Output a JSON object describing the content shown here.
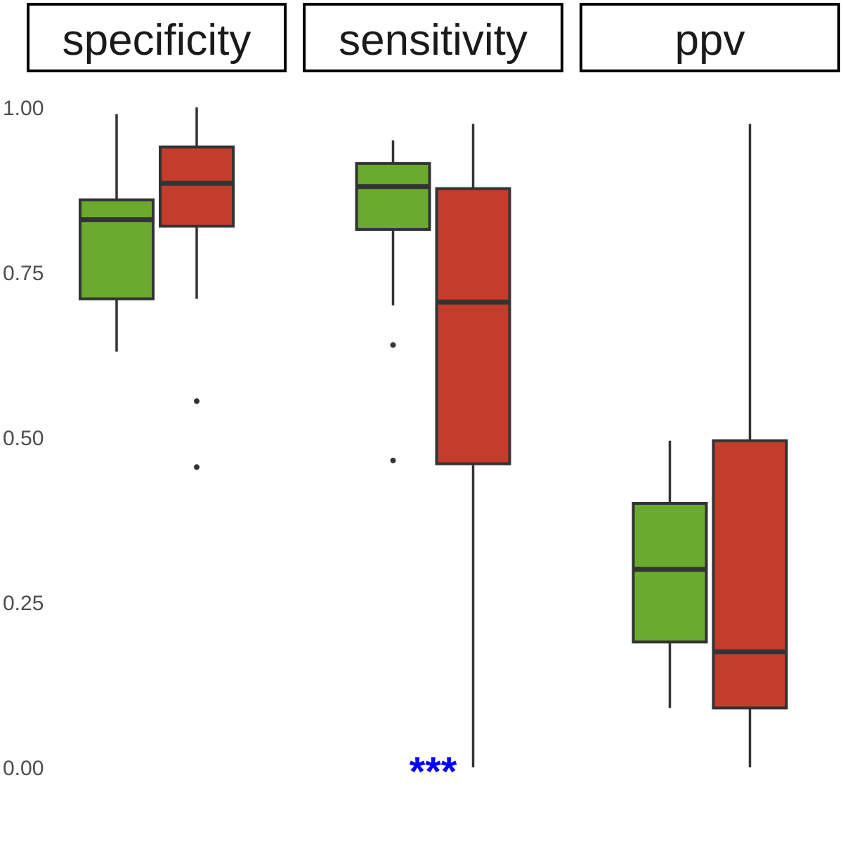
{
  "chart_data": {
    "type": "boxplot",
    "facets": [
      "specificity",
      "sensitivity",
      "ppv"
    ],
    "ylim": [
      0,
      1
    ],
    "y_ticks": [
      "0.00",
      "0.25",
      "0.50",
      "0.75",
      "1.00"
    ],
    "y_tick_values": [
      0,
      0.25,
      0.5,
      0.75,
      1.0
    ],
    "grid": false,
    "legend": "none",
    "colors": {
      "green": "#6aaa2e",
      "red": "#c33d2a",
      "outline": "#333333",
      "annotation": "#0000ff"
    },
    "boxes": [
      {
        "facet": "specificity",
        "group": "green",
        "lower_whisker": 0.63,
        "q1": 0.71,
        "median": 0.83,
        "q3": 0.86,
        "upper_whisker": 0.99,
        "outliers": []
      },
      {
        "facet": "specificity",
        "group": "red",
        "lower_whisker": 0.71,
        "q1": 0.82,
        "median": 0.885,
        "q3": 0.94,
        "upper_whisker": 1.0,
        "outliers": [
          0.555,
          0.455
        ]
      },
      {
        "facet": "sensitivity",
        "group": "green",
        "lower_whisker": 0.7,
        "q1": 0.815,
        "median": 0.88,
        "q3": 0.915,
        "upper_whisker": 0.95,
        "outliers": [
          0.64,
          0.465
        ]
      },
      {
        "facet": "sensitivity",
        "group": "red",
        "lower_whisker": 0.0,
        "q1": 0.46,
        "median": 0.705,
        "q3": 0.877,
        "upper_whisker": 0.975,
        "outliers": []
      },
      {
        "facet": "ppv",
        "group": "green",
        "lower_whisker": 0.09,
        "q1": 0.19,
        "median": 0.3,
        "q3": 0.4,
        "upper_whisker": 0.495,
        "outliers": []
      },
      {
        "facet": "ppv",
        "group": "red",
        "lower_whisker": 0.0,
        "q1": 0.09,
        "median": 0.175,
        "q3": 0.495,
        "upper_whisker": 0.975,
        "outliers": []
      }
    ],
    "annotations": [
      {
        "facet": "sensitivity",
        "text": "***",
        "y": 0.0
      }
    ]
  }
}
